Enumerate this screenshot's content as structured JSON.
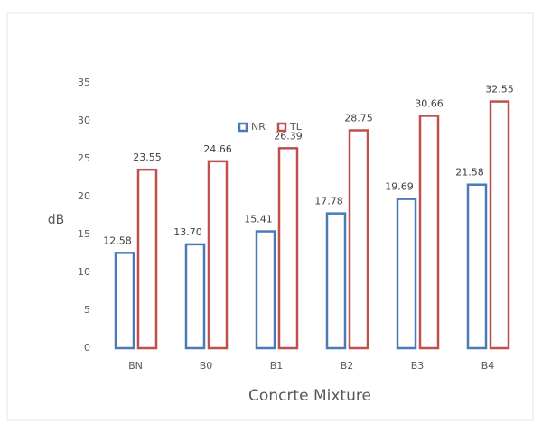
{
  "chart_data": {
    "type": "bar",
    "x_label": "Concrte Mixture",
    "y_label": "dB",
    "categories": [
      "BN",
      "B0",
      "B1",
      "B2",
      "B3",
      "B4"
    ],
    "series": [
      {
        "name": "NR",
        "color": "#4a7ab8",
        "values": [
          12.58,
          13.7,
          15.41,
          17.78,
          19.69,
          21.58
        ],
        "value_labels": [
          "12.58",
          "13.70",
          "15.41",
          "17.78",
          "19.69",
          "21.58"
        ]
      },
      {
        "name": "TL",
        "color": "#c0504d",
        "values": [
          23.55,
          24.66,
          26.39,
          28.75,
          30.66,
          32.55
        ],
        "value_labels": [
          "23.55",
          "24.66",
          "26.39",
          "28.75",
          "30.66",
          "32.55"
        ]
      }
    ],
    "ylim": [
      0,
      35
    ],
    "yticks": [
      0,
      5,
      10,
      15,
      20,
      25,
      30,
      35
    ],
    "grid": false
  }
}
